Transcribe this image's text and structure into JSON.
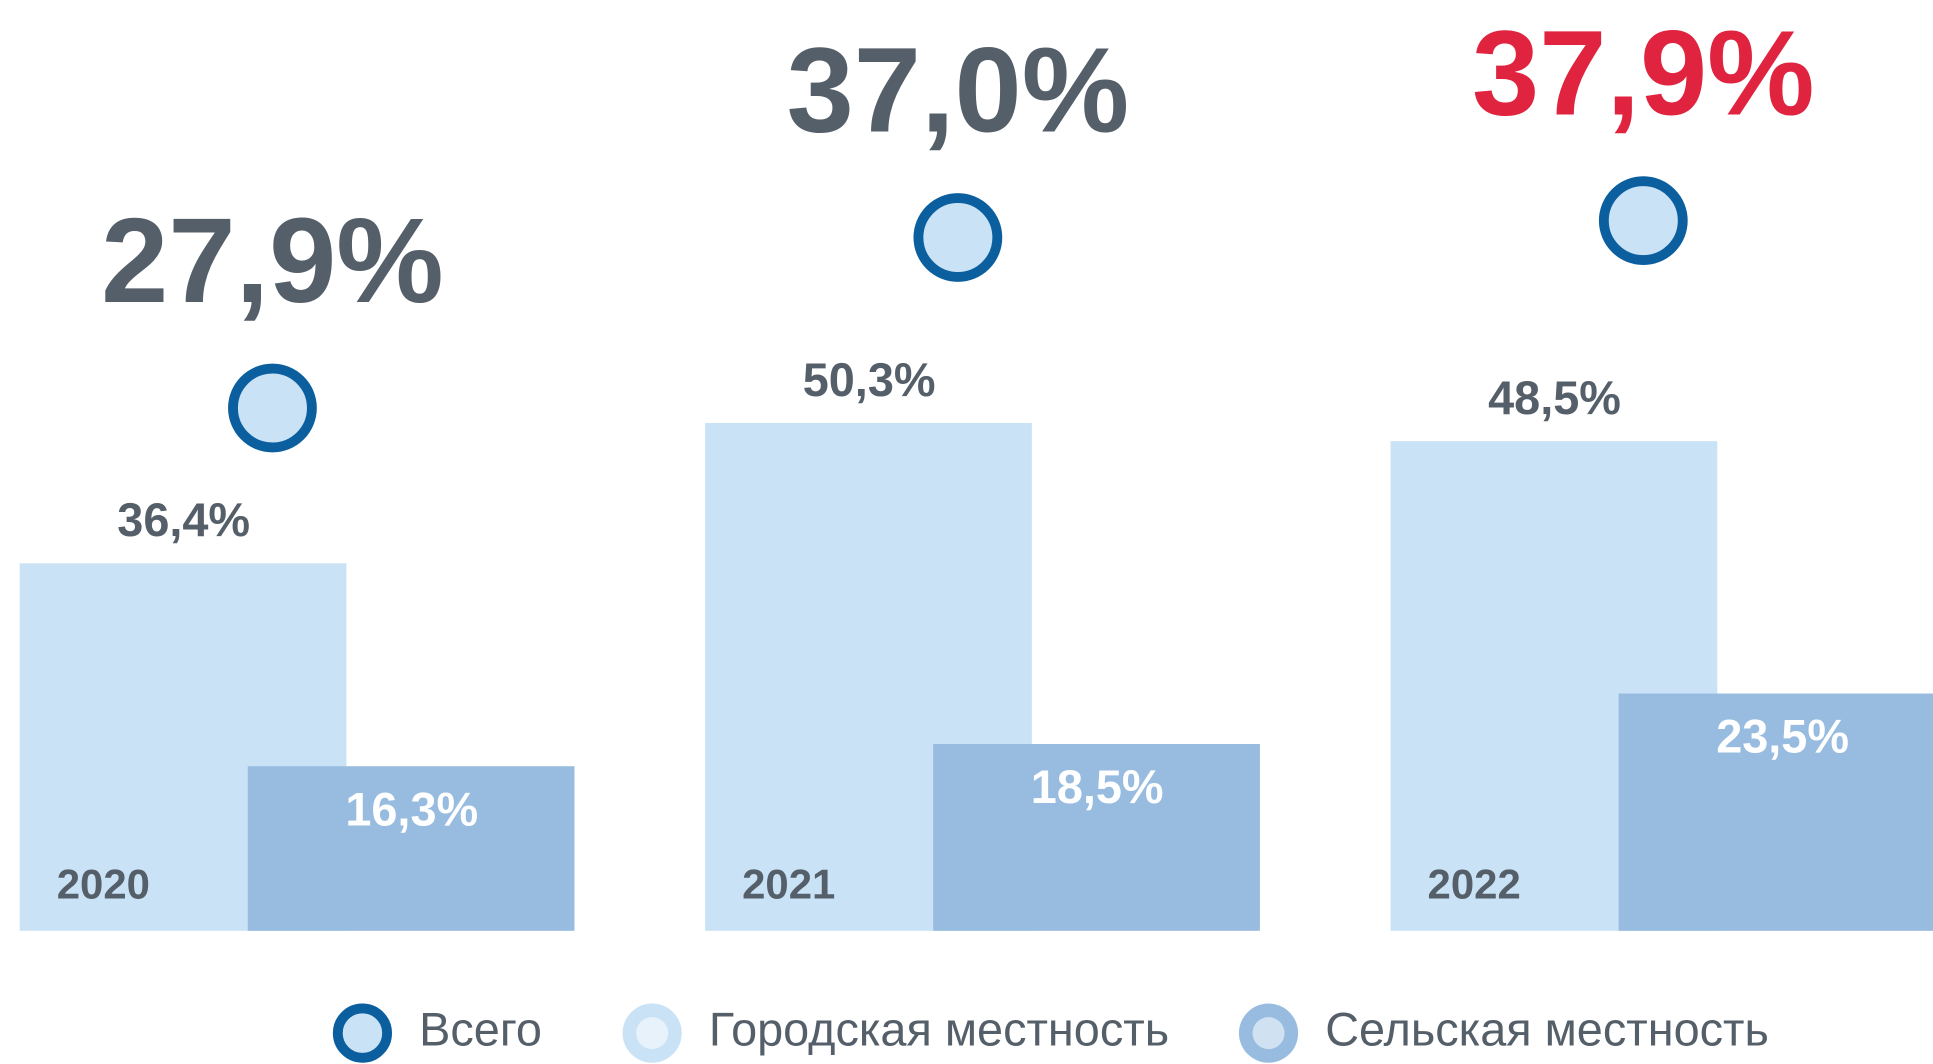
{
  "chart_data": {
    "type": "bar",
    "categories": [
      "2020",
      "2021",
      "2022"
    ],
    "series": [
      {
        "name": "Городская местность",
        "color": "#c9e2f6",
        "values": [
          36.4,
          50.3,
          48.5
        ],
        "value_labels": [
          "36,4%",
          "50,3%",
          "48,5%"
        ]
      },
      {
        "name": "Сельская местность",
        "color": "#97bce0",
        "values": [
          16.3,
          18.5,
          23.5
        ],
        "value_labels": [
          "16,3%",
          "18,5%",
          "23,5%"
        ]
      },
      {
        "name": "Всего",
        "type": "marker",
        "color": "#0b5f9e",
        "values": [
          27.9,
          37.0,
          37.9
        ],
        "value_labels": [
          "27,9%",
          "37,0%",
          "37,9%"
        ],
        "value_label_colors": [
          "#555f69",
          "#555f69",
          "#e0233f"
        ]
      }
    ]
  }
}
